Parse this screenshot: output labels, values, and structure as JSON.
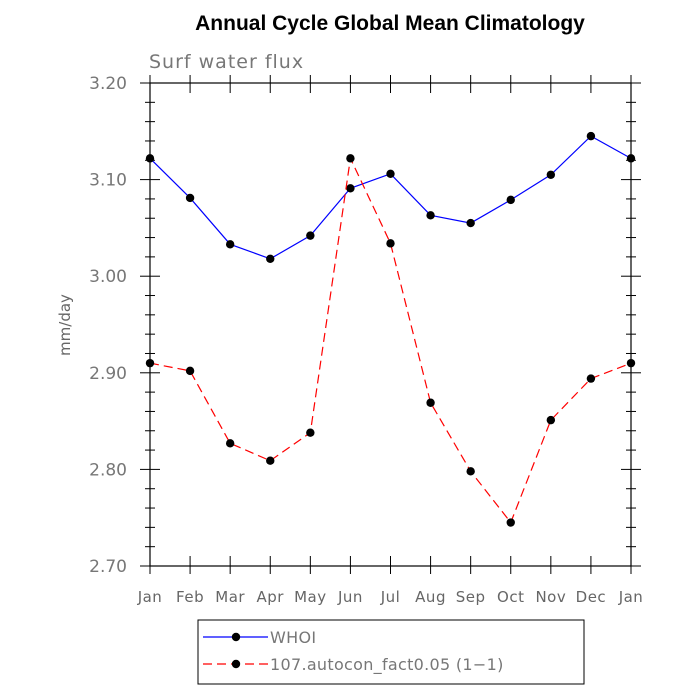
{
  "chart_data": {
    "type": "line",
    "title": "Annual Cycle Global Mean Climatology",
    "subtitle": "Surf water flux",
    "xlabel": "",
    "ylabel": "mm/day",
    "ylim": [
      2.7,
      3.2
    ],
    "ytick_labels": [
      "2.70",
      "2.80",
      "2.90",
      "3.00",
      "3.10",
      "3.20"
    ],
    "ytick_values": [
      2.7,
      2.8,
      2.9,
      3.0,
      3.1,
      3.2
    ],
    "categories": [
      "Jan",
      "Feb",
      "Mar",
      "Apr",
      "May",
      "Jun",
      "Jul",
      "Aug",
      "Sep",
      "Oct",
      "Nov",
      "Dec",
      "Jan"
    ],
    "grid": false,
    "legend_position": "bottom",
    "series": [
      {
        "name": "WHOI",
        "color": "#0000ff",
        "line_style": "solid",
        "values": [
          3.122,
          3.081,
          3.033,
          3.018,
          3.042,
          3.091,
          3.106,
          3.063,
          3.055,
          3.079,
          3.105,
          3.145,
          3.122
        ]
      },
      {
        "name": "107.autocon_fact0.05 (1−1)",
        "color": "#ff0000",
        "line_style": "dashed",
        "values": [
          2.91,
          2.902,
          2.827,
          2.809,
          2.838,
          3.122,
          3.034,
          2.869,
          2.798,
          2.745,
          2.851,
          2.894,
          2.91
        ]
      }
    ]
  }
}
